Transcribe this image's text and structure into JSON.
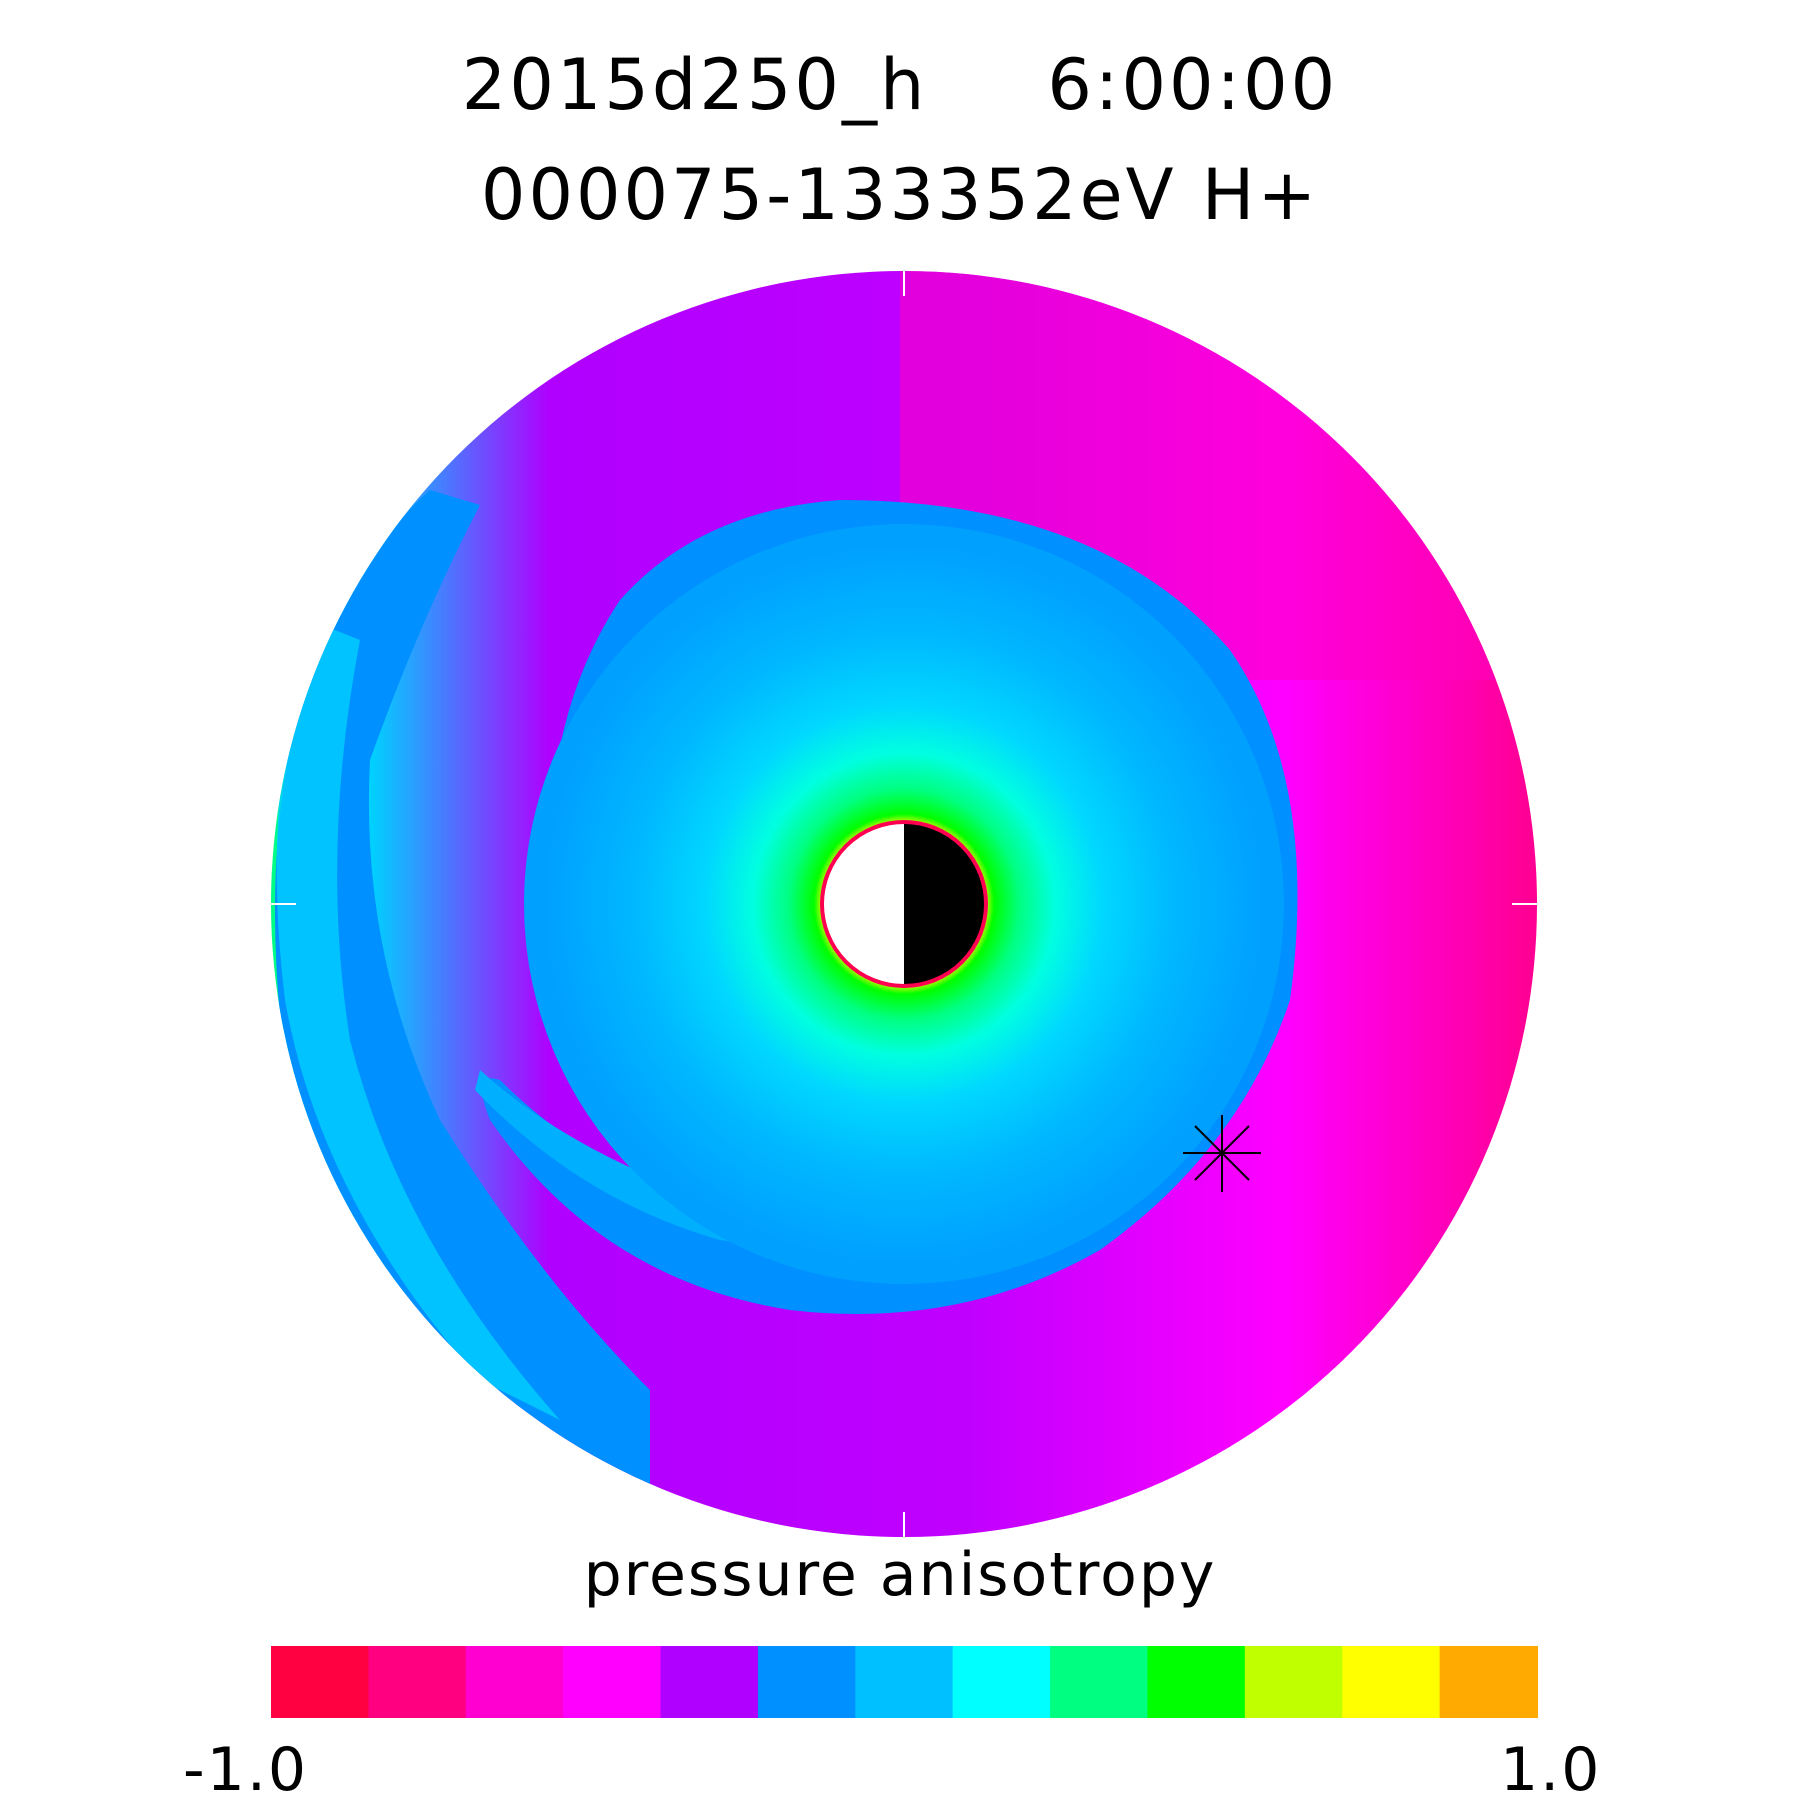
{
  "header": {
    "run_id": "2015d250_h",
    "time": "6:00:00",
    "energy_species": "000075-133352eV H+"
  },
  "chart_data": {
    "type": "heatmap",
    "projection": "polar (equatorial plane), Earth at center, dayside half white / nightside half black",
    "title": "2015d250_h   6:00:00",
    "subtitle": "000075-133352eV H+",
    "colorbar": {
      "label": "pressure anisotropy",
      "min": -1.0,
      "max": 1.0,
      "min_label": "-1.0",
      "max_label": "1.0",
      "colors": [
        "#ff0040",
        "#ff0080",
        "#ff00d0",
        "#ff00ff",
        "#b000ff",
        "#0090ff",
        "#00c0ff",
        "#00ffff",
        "#00ff80",
        "#00ff00",
        "#c0ff00",
        "#ffff00",
        "#ffaa00"
      ]
    },
    "description_levels": [
      {
        "region": "outer ring, dayside/dusk",
        "approx_value": -0.85
      },
      {
        "region": "outer ring, night/dawn",
        "approx_value": -0.3
      },
      {
        "region": "middle spiral band",
        "approx_value": 0.05
      },
      {
        "region": "inner rings",
        "approx_value": 0.2
      },
      {
        "region": "near Earth",
        "approx_value": 0.7
      }
    ],
    "marker": {
      "symbol": "asterisk",
      "position_description": "lower right, on the inner edge of the outer magenta ring"
    }
  }
}
